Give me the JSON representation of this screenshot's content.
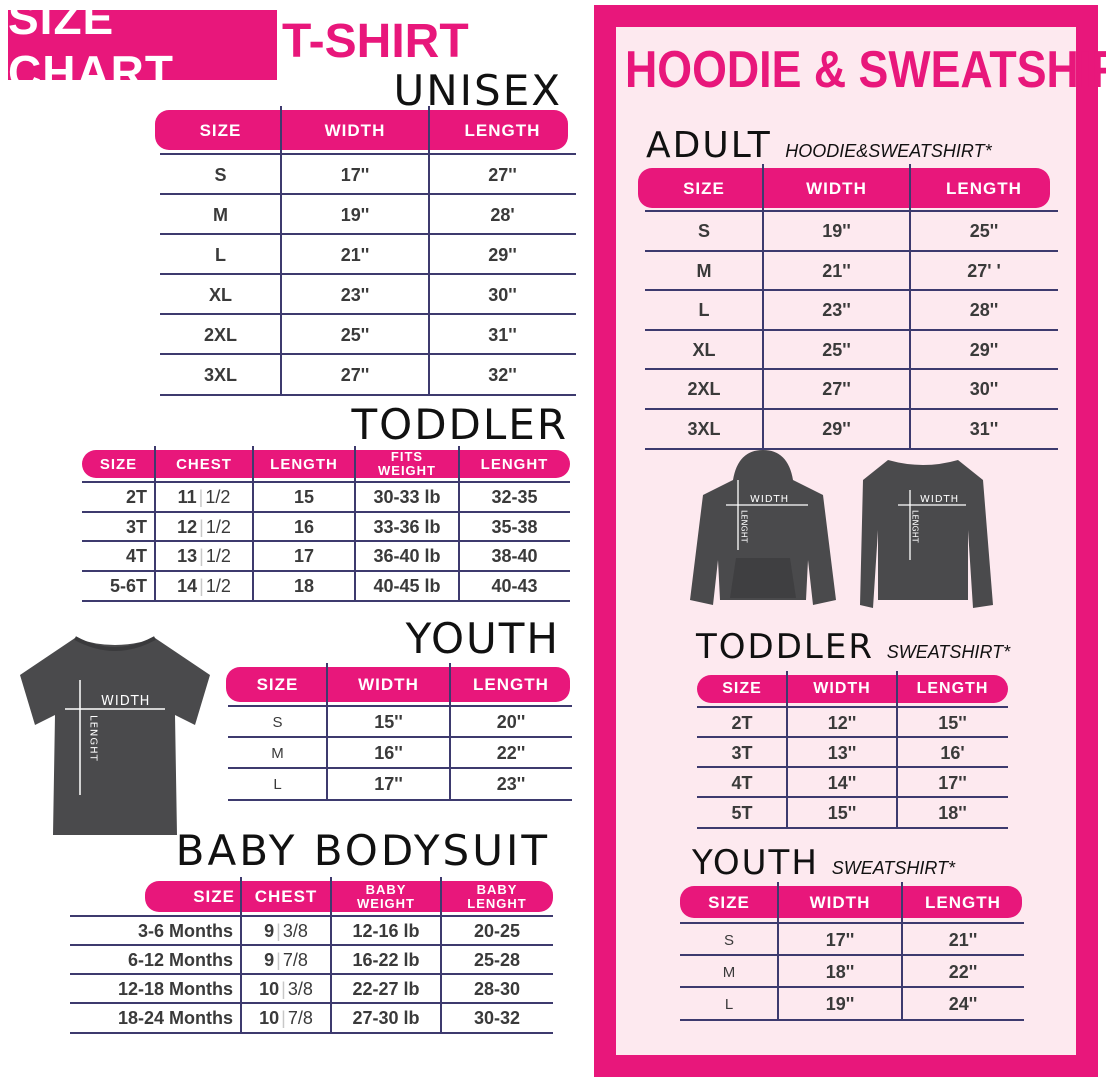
{
  "header": {
    "size_chart": "SIZE CHART",
    "tshirt": "T-SHIRT"
  },
  "colors": {
    "accent": "#e8177b",
    "panel_bg": "#fde9ef",
    "lines": "#3d3a6e",
    "garment": "#4a4a4c"
  },
  "tshirt": {
    "unisex": {
      "label": "UNISEX",
      "headers": [
        "SIZE",
        "WIDTH",
        "LENGTH"
      ],
      "rows": [
        [
          "S",
          "17''",
          "27''"
        ],
        [
          "M",
          "19''",
          "28'"
        ],
        [
          "L",
          "21''",
          "29''"
        ],
        [
          "XL",
          "23''",
          "30''"
        ],
        [
          "2XL",
          "25''",
          "31''"
        ],
        [
          "3XL",
          "27''",
          "32''"
        ]
      ]
    },
    "toddler": {
      "label": "TODDLER",
      "headers": [
        "SIZE",
        "CHEST",
        "LENGTH",
        "FITS WEIGHT",
        "LENGHT"
      ],
      "rows": [
        [
          "2T",
          "11|1/2",
          "15",
          "30-33 lb",
          "32-35"
        ],
        [
          "3T",
          "12|1/2",
          "16",
          "33-36 lb",
          "35-38"
        ],
        [
          "4T",
          "13|1/2",
          "17",
          "36-40 lb",
          "38-40"
        ],
        [
          "5-6T",
          "14|1/2",
          "18",
          "40-45 lb",
          "40-43"
        ]
      ]
    },
    "youth": {
      "label": "YOUTH",
      "headers": [
        "SIZE",
        "WIDTH",
        "LENGTH"
      ],
      "rows": [
        [
          "S",
          "15''",
          "20''"
        ],
        [
          "M",
          "16''",
          "22''"
        ],
        [
          "L",
          "17''",
          "23''"
        ]
      ]
    },
    "baby": {
      "label": "BABY BODYSUIT",
      "headers": [
        "SIZE",
        "CHEST",
        "BABY WEIGHT",
        "BABY LENGHT"
      ],
      "rows": [
        [
          "3-6 Months",
          "9|3/8",
          "12-16 lb",
          "20-25"
        ],
        [
          "6-12 Months",
          "9|7/8",
          "16-22 lb",
          "25-28"
        ],
        [
          "12-18 Months",
          "10|3/8",
          "22-27 lb",
          "28-30"
        ],
        [
          "18-24 Months",
          "10|7/8",
          "27-30 lb",
          "30-32"
        ]
      ]
    },
    "diagram": {
      "width": "WIDTH",
      "length": "LENGHT"
    }
  },
  "hoodie": {
    "title": "HOODIE & SWEATSHIRT",
    "adult": {
      "label": "ADULT",
      "sublabel": "HOODIE&SWEATSHIRT*",
      "headers": [
        "SIZE",
        "WIDTH",
        "LENGTH"
      ],
      "rows": [
        [
          "S",
          "19''",
          "25''"
        ],
        [
          "M",
          "21''",
          "27' '"
        ],
        [
          "L",
          "23''",
          "28''"
        ],
        [
          "XL",
          "25''",
          "29''"
        ],
        [
          "2XL",
          "27''",
          "30''"
        ],
        [
          "3XL",
          "29''",
          "31''"
        ]
      ]
    },
    "toddler": {
      "label": "TODDLER",
      "sublabel": "SWEATSHIRT*",
      "headers": [
        "SIZE",
        "WIDTH",
        "LENGTH"
      ],
      "rows": [
        [
          "2T",
          "12''",
          "15''"
        ],
        [
          "3T",
          "13''",
          "16'"
        ],
        [
          "4T",
          "14''",
          "17''"
        ],
        [
          "5T",
          "15''",
          "18''"
        ]
      ]
    },
    "youth": {
      "label": "YOUTH",
      "sublabel": "SWEATSHIRT*",
      "headers": [
        "SIZE",
        "WIDTH",
        "LENGTH"
      ],
      "rows": [
        [
          "S",
          "17''",
          "21''"
        ],
        [
          "M",
          "18''",
          "22''"
        ],
        [
          "L",
          "19''",
          "24''"
        ]
      ]
    },
    "diagram": {
      "width": "WIDTH",
      "length": "LENGHT"
    }
  }
}
